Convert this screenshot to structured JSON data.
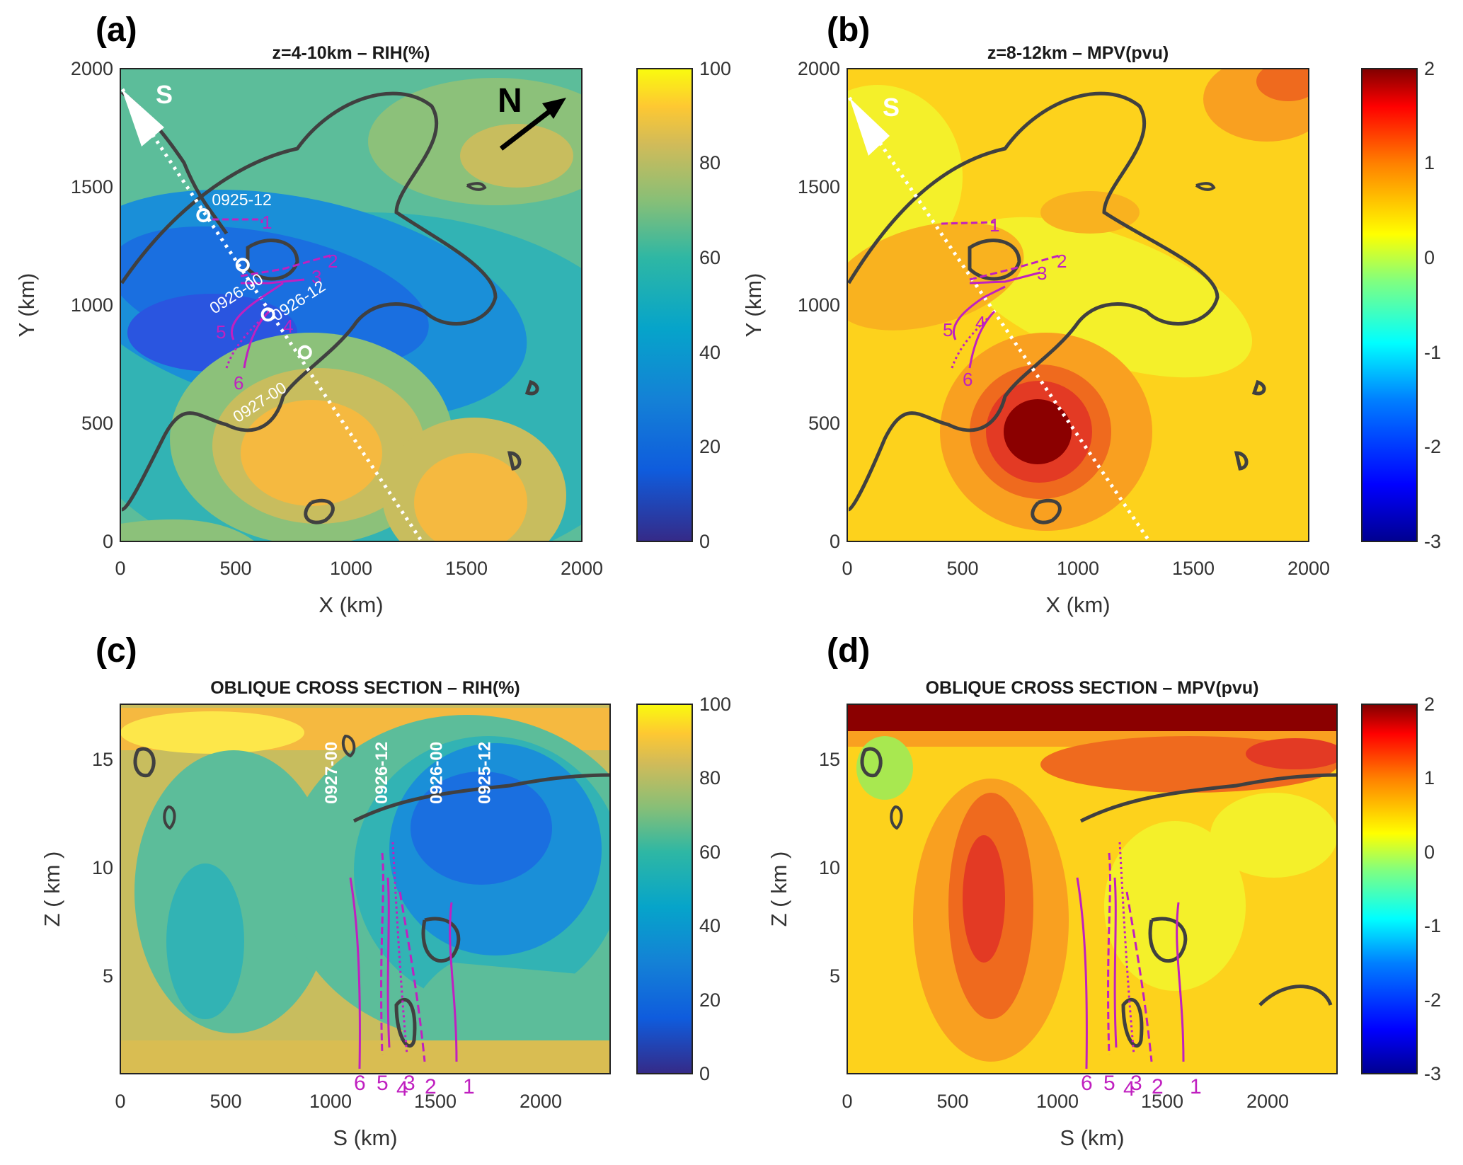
{
  "figure": {
    "panels": [
      {
        "id": "a",
        "letter": "(a)",
        "title": "z=4-10km  –  RIH(%)"
      },
      {
        "id": "b",
        "letter": "(b)",
        "title": "z=8-12km  –  MPV(pvu)"
      },
      {
        "id": "c",
        "letter": "(c)",
        "title": "OBLIQUE CROSS SECTION  –  RIH(%)"
      },
      {
        "id": "d",
        "letter": "(d)",
        "title": "OBLIQUE CROSS SECTION  –  MPV(pvu)"
      }
    ],
    "colorbar_rih": {
      "ticks": [
        "100",
        "80",
        "60",
        "40",
        "20",
        "0"
      ],
      "min": 0,
      "max": 100,
      "colormap": "parula"
    },
    "colorbar_mpv": {
      "ticks": [
        "2",
        "1",
        "0",
        "-1",
        "-2",
        "-3"
      ],
      "min": -3,
      "max": 2,
      "colormap": "jet"
    },
    "direction_labels": {
      "south": "S",
      "north": "N"
    },
    "times": [
      "0925-12",
      "0926-00",
      "0926-12",
      "0927-00"
    ],
    "trajectory_ids": [
      "1",
      "2",
      "3",
      "4",
      "5",
      "6"
    ],
    "colors": {
      "trajectory": "#c020c0",
      "contour": "#404040",
      "marker": "#ffffff"
    }
  },
  "chart_data": [
    {
      "type": "heatmap",
      "panel": "a",
      "title": "z=4-10km  –  RIH(%)",
      "xlabel": "X (km)",
      "ylabel": "Y (km)",
      "xlim": [
        0,
        2000
      ],
      "ylim": [
        0,
        2000
      ],
      "xticks": [
        "0",
        "500",
        "1000",
        "1500",
        "2000"
      ],
      "yticks": [
        "0",
        "500",
        "1000",
        "1500",
        "2000"
      ],
      "colorbar": {
        "label": "RIH(%)",
        "range": [
          0,
          100
        ]
      },
      "cross_section_line": {
        "from": [
          0,
          1900
        ],
        "to": [
          1300,
          0
        ]
      },
      "markers": [
        {
          "label": "0925-12",
          "x": 360,
          "y": 1380
        },
        {
          "label": "0926-00",
          "x": 530,
          "y": 1170
        },
        {
          "label": "0926-12",
          "x": 640,
          "y": 960
        },
        {
          "label": "0927-00",
          "x": 800,
          "y": 800
        }
      ]
    },
    {
      "type": "heatmap",
      "panel": "b",
      "title": "z=8-12km  –  MPV(pvu)",
      "xlabel": "X (km)",
      "ylabel": "Y (km)",
      "xlim": [
        0,
        2000
      ],
      "ylim": [
        0,
        2000
      ],
      "xticks": [
        "0",
        "500",
        "1000",
        "1500",
        "2000"
      ],
      "yticks": [
        "0",
        "500",
        "1000",
        "1500",
        "2000"
      ],
      "colorbar": {
        "label": "MPV(pvu)",
        "range": [
          -3,
          2
        ]
      }
    },
    {
      "type": "heatmap",
      "panel": "c",
      "title": "OBLIQUE CROSS SECTION  –  RIH(%)",
      "xlabel": "S (km)",
      "ylabel": "Z ( km )",
      "xlim": [
        0,
        2330
      ],
      "ylim": [
        0.5,
        17.5
      ],
      "xticks": [
        "0",
        "500",
        "1000",
        "1500",
        "2000"
      ],
      "yticks": [
        "5",
        "10",
        "15"
      ],
      "colorbar": {
        "label": "RIH(%)",
        "range": [
          0,
          100
        ]
      },
      "time_markers": [
        {
          "label": "0927-00",
          "s": 1030
        },
        {
          "label": "0926-12",
          "s": 1270
        },
        {
          "label": "0926-00",
          "s": 1530
        },
        {
          "label": "0925-12",
          "s": 1760
        }
      ]
    },
    {
      "type": "heatmap",
      "panel": "d",
      "title": "OBLIQUE CROSS SECTION  –  MPV(pvu)",
      "xlabel": "S (km)",
      "ylabel": "Z ( km )",
      "xlim": [
        0,
        2330
      ],
      "ylim": [
        0.5,
        17.5
      ],
      "xticks": [
        "0",
        "500",
        "1000",
        "1500",
        "2000"
      ],
      "yticks": [
        "5",
        "10",
        "15"
      ],
      "colorbar": {
        "label": "MPV(pvu)",
        "range": [
          -3,
          2
        ]
      }
    }
  ]
}
